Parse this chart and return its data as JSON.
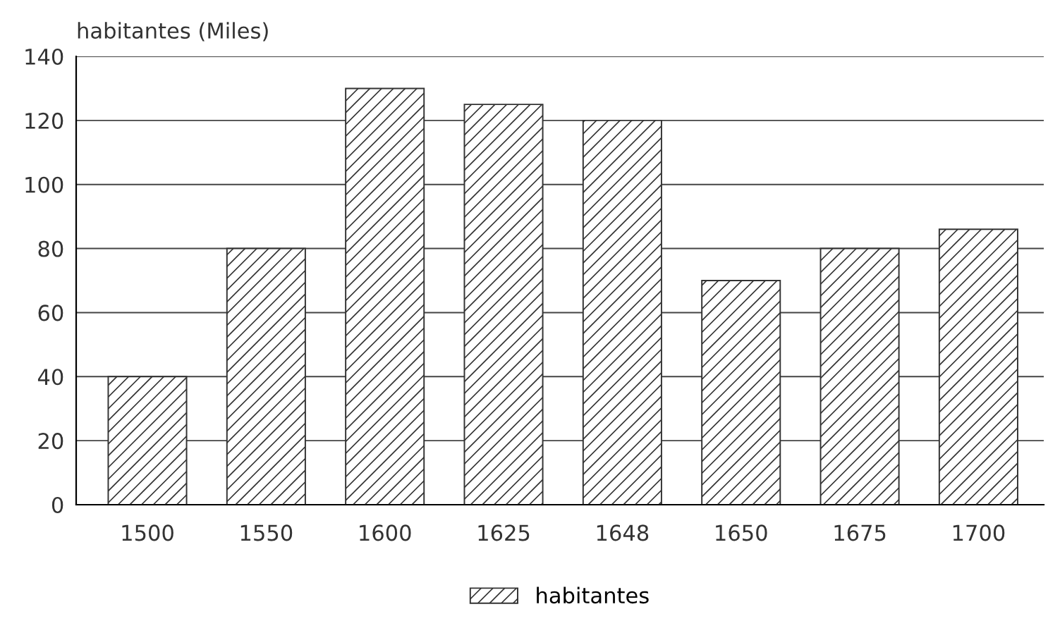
{
  "chart_data": {
    "type": "bar",
    "ylabel": "habitantes (Miles)",
    "categories": [
      "1500",
      "1550",
      "1600",
      "1625",
      "1648",
      "1650",
      "1675",
      "1700"
    ],
    "series": [
      {
        "name": "habitantes",
        "color": "#333333",
        "values": [
          40,
          80,
          130,
          125,
          120,
          70,
          80,
          86
        ]
      }
    ],
    "ylim": [
      0,
      140
    ],
    "yticks": [
      0,
      20,
      40,
      60,
      80,
      100,
      120,
      140
    ],
    "grid": "y",
    "legend": "bottom"
  }
}
